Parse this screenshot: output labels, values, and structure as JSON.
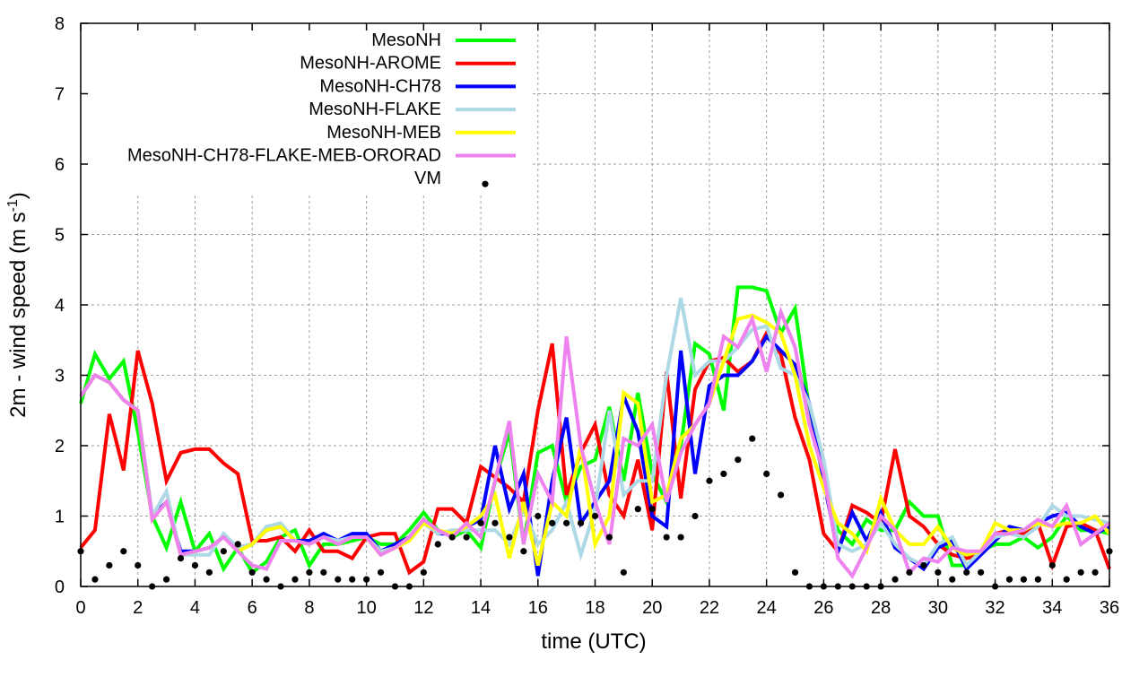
{
  "chart_data": {
    "type": "line",
    "title": "",
    "xlabel": "time (UTC)",
    "ylabel": "2m - wind speed  (m s",
    "ylabel_sup": "-1",
    "ylabel_close": ")",
    "xlim": [
      0,
      36
    ],
    "ylim": [
      0,
      8
    ],
    "grid": true,
    "legend_position": "top-left",
    "xticks": [
      "0",
      "2",
      "4",
      "6",
      "8",
      "10",
      "12",
      "14",
      "16",
      "18",
      "20",
      "22",
      "24",
      "26",
      "28",
      "30",
      "32",
      "34",
      "36"
    ],
    "yticks": [
      "0",
      "1",
      "2",
      "3",
      "4",
      "5",
      "6",
      "7",
      "8"
    ],
    "x_step": 0.5,
    "series": [
      {
        "name": "MesoNH",
        "color": "#00ff00",
        "style": "line",
        "values": [
          2.6,
          3.3,
          2.95,
          3.2,
          2.2,
          1.0,
          0.55,
          1.2,
          0.5,
          0.75,
          0.25,
          0.55,
          0.2,
          0.35,
          0.7,
          0.8,
          0.3,
          0.6,
          0.6,
          0.65,
          0.7,
          0.6,
          0.6,
          0.8,
          1.05,
          0.8,
          0.7,
          0.8,
          0.55,
          1.5,
          2.2,
          0.6,
          1.9,
          2.0,
          1.2,
          1.7,
          1.8,
          2.55,
          1.5,
          2.75,
          1.6,
          1.2,
          2.0,
          3.45,
          3.3,
          2.5,
          4.25,
          4.25,
          4.2,
          3.6,
          3.95,
          2.5,
          1.5,
          0.8,
          0.6,
          0.95,
          0.8,
          0.8,
          1.2,
          1.0,
          1.0,
          0.3,
          0.3,
          0.5,
          0.6,
          0.6,
          0.7,
          0.55,
          0.7,
          1.0,
          0.8,
          0.8,
          0.75
        ]
      },
      {
        "name": "MesoNH-AROME",
        "color": "#ff0000",
        "style": "line",
        "values": [
          0.55,
          0.8,
          2.45,
          1.65,
          3.35,
          2.6,
          1.5,
          1.9,
          1.95,
          1.95,
          1.75,
          1.6,
          0.65,
          0.65,
          0.7,
          0.5,
          0.8,
          0.5,
          0.5,
          0.4,
          0.7,
          0.75,
          0.75,
          0.2,
          0.35,
          1.1,
          1.1,
          0.9,
          1.7,
          1.55,
          1.4,
          1.2,
          2.5,
          3.45,
          1.3,
          1.9,
          2.3,
          1.3,
          1.0,
          1.8,
          0.8,
          3.05,
          1.25,
          2.8,
          3.2,
          3.25,
          3.05,
          3.2,
          3.6,
          3.3,
          2.4,
          1.8,
          0.75,
          0.5,
          1.15,
          1.05,
          0.9,
          1.95,
          1.0,
          0.85,
          0.6,
          0.45,
          0.4,
          0.45,
          0.75,
          0.8,
          0.75,
          0.9,
          0.3,
          0.85,
          0.9,
          0.8,
          0.25
        ]
      },
      {
        "name": "MesoNH-CH78",
        "color": "#0000ff",
        "style": "line",
        "values": [
          2.7,
          3.0,
          2.9,
          2.65,
          2.5,
          1.0,
          1.2,
          0.5,
          0.5,
          0.55,
          0.7,
          0.55,
          0.6,
          0.8,
          0.85,
          0.65,
          0.65,
          0.75,
          0.65,
          0.75,
          0.75,
          0.5,
          0.6,
          0.7,
          0.95,
          0.75,
          0.75,
          0.85,
          0.95,
          2.0,
          1.1,
          1.6,
          0.15,
          1.5,
          2.4,
          0.9,
          1.2,
          1.5,
          2.7,
          2.2,
          1.0,
          0.85,
          3.35,
          1.6,
          2.85,
          3.0,
          3.0,
          3.2,
          3.55,
          3.35,
          3.15,
          2.6,
          1.5,
          0.5,
          1.05,
          0.65,
          1.05,
          0.55,
          0.4,
          0.25,
          0.55,
          0.65,
          0.25,
          0.45,
          0.65,
          0.85,
          0.8,
          0.9,
          1.0,
          1.05,
          0.85,
          0.75,
          0.85
        ]
      },
      {
        "name": "MesoNH-FLAKE",
        "color": "#add8e6",
        "style": "line",
        "values": [
          2.7,
          3.0,
          2.9,
          2.65,
          2.5,
          1.0,
          1.35,
          0.45,
          0.45,
          0.45,
          0.75,
          0.55,
          0.6,
          0.85,
          0.9,
          0.65,
          0.6,
          0.7,
          0.65,
          0.7,
          0.7,
          0.5,
          0.55,
          0.65,
          0.9,
          0.75,
          0.8,
          0.8,
          0.8,
          0.8,
          0.6,
          1.1,
          0.6,
          0.8,
          1.2,
          0.45,
          1.1,
          2.5,
          1.3,
          1.5,
          1.5,
          3.0,
          4.1,
          3.0,
          3.2,
          3.2,
          3.4,
          3.65,
          3.7,
          3.1,
          3.0,
          2.6,
          1.8,
          0.6,
          0.5,
          0.6,
          0.9,
          0.6,
          0.4,
          0.3,
          0.6,
          0.7,
          0.3,
          0.5,
          0.7,
          0.75,
          0.7,
          0.85,
          1.15,
          1.0,
          1.0,
          0.95,
          0.9
        ]
      },
      {
        "name": "MesoNH-MEB",
        "color": "#ffff00",
        "style": "line",
        "values": [
          2.7,
          3.0,
          2.9,
          2.65,
          2.5,
          0.95,
          1.2,
          0.45,
          0.5,
          0.55,
          0.7,
          0.5,
          0.6,
          0.8,
          0.85,
          0.65,
          0.6,
          0.7,
          0.6,
          0.7,
          0.7,
          0.45,
          0.55,
          0.65,
          0.9,
          0.8,
          0.75,
          0.85,
          1.0,
          1.3,
          0.4,
          1.2,
          0.3,
          1.2,
          1.0,
          2.0,
          0.6,
          1.0,
          2.75,
          2.6,
          1.2,
          1.3,
          2.1,
          2.3,
          2.6,
          3.2,
          3.8,
          3.85,
          3.75,
          3.6,
          3.0,
          2.0,
          1.4,
          0.9,
          0.75,
          0.5,
          1.25,
          0.8,
          0.6,
          0.6,
          0.85,
          0.55,
          0.45,
          0.5,
          0.9,
          0.8,
          0.8,
          0.9,
          0.85,
          0.9,
          0.9,
          1.0,
          0.75
        ]
      },
      {
        "name": "MesoNH-CH78-FLAKE-MEB-ORORAD",
        "color": "#ee82ee",
        "style": "line",
        "values": [
          2.7,
          3.0,
          2.9,
          2.65,
          2.5,
          0.95,
          1.2,
          0.45,
          0.5,
          0.55,
          0.7,
          0.5,
          0.3,
          0.25,
          0.65,
          0.65,
          0.6,
          0.7,
          0.6,
          0.7,
          0.7,
          0.45,
          0.55,
          0.7,
          0.95,
          0.8,
          0.7,
          0.9,
          0.7,
          1.5,
          2.35,
          0.6,
          1.6,
          1.2,
          3.55,
          2.0,
          1.2,
          0.6,
          2.1,
          2.0,
          2.3,
          1.2,
          1.9,
          2.3,
          2.6,
          3.55,
          3.4,
          3.8,
          3.05,
          3.9,
          3.4,
          2.3,
          1.6,
          0.4,
          0.15,
          0.55,
          1.0,
          0.8,
          0.2,
          0.4,
          0.35,
          0.55,
          0.5,
          0.5,
          0.75,
          0.75,
          0.8,
          0.95,
          0.85,
          1.15,
          0.6,
          0.75,
          0.9
        ]
      },
      {
        "name": "VM",
        "color": "#000000",
        "style": "points",
        "values": [
          0.5,
          0.1,
          0.3,
          0.5,
          0.3,
          0,
          0.1,
          0.4,
          0.3,
          0.2,
          0.5,
          0.6,
          0.2,
          0.1,
          0,
          0.1,
          0.2,
          0.2,
          0.1,
          0.1,
          0.1,
          0.2,
          0,
          0,
          0.2,
          0.6,
          0.7,
          0.7,
          0.9,
          0.9,
          0.7,
          0.5,
          1.0,
          0.9,
          0.9,
          0.9,
          1.0,
          0.7,
          0.2,
          1.1,
          1.1,
          0.7,
          0.7,
          1.0,
          1.5,
          1.6,
          1.8,
          2.1,
          1.6,
          1.3,
          0.2,
          0,
          0,
          0,
          0,
          0,
          0,
          0.1,
          0.2,
          0.3,
          0.2,
          0.1,
          0.2,
          0.2,
          0,
          0.1,
          0.1,
          0.1,
          0.3,
          0.1,
          0.2,
          0.2,
          0.5
        ]
      }
    ]
  }
}
